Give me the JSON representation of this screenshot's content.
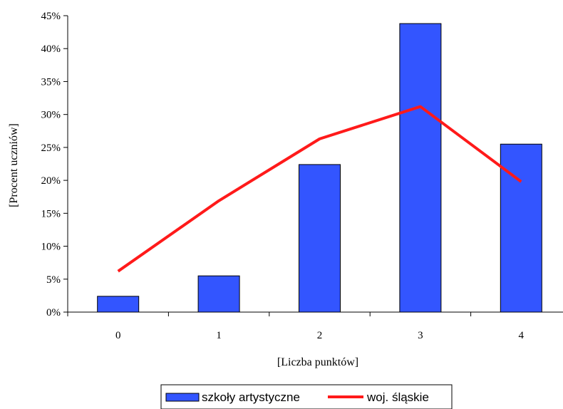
{
  "chart_data": {
    "type": "bar",
    "categories": [
      "0",
      "1",
      "2",
      "3",
      "4"
    ],
    "series": [
      {
        "name": "szkoły artystyczne",
        "kind": "bar",
        "color": "#3355ff",
        "values": [
          2.4,
          5.5,
          22.4,
          43.8,
          25.5
        ]
      },
      {
        "name": "woj. śląskie",
        "kind": "line",
        "color": "#ff1a1a",
        "values": [
          6.2,
          16.9,
          26.3,
          31.2,
          19.8
        ]
      }
    ],
    "xlabel": "[Liczba punktów]",
    "ylabel": "[Procent uczniów]",
    "ylim": [
      0,
      45
    ],
    "yticks": [
      0,
      5,
      10,
      15,
      20,
      25,
      30,
      35,
      40,
      45
    ],
    "ytick_labels": [
      "0%",
      "5%",
      "10%",
      "15%",
      "20%",
      "25%",
      "30%",
      "35%",
      "40%",
      "45%"
    ],
    "grid": false,
    "legend_position": "bottom"
  }
}
